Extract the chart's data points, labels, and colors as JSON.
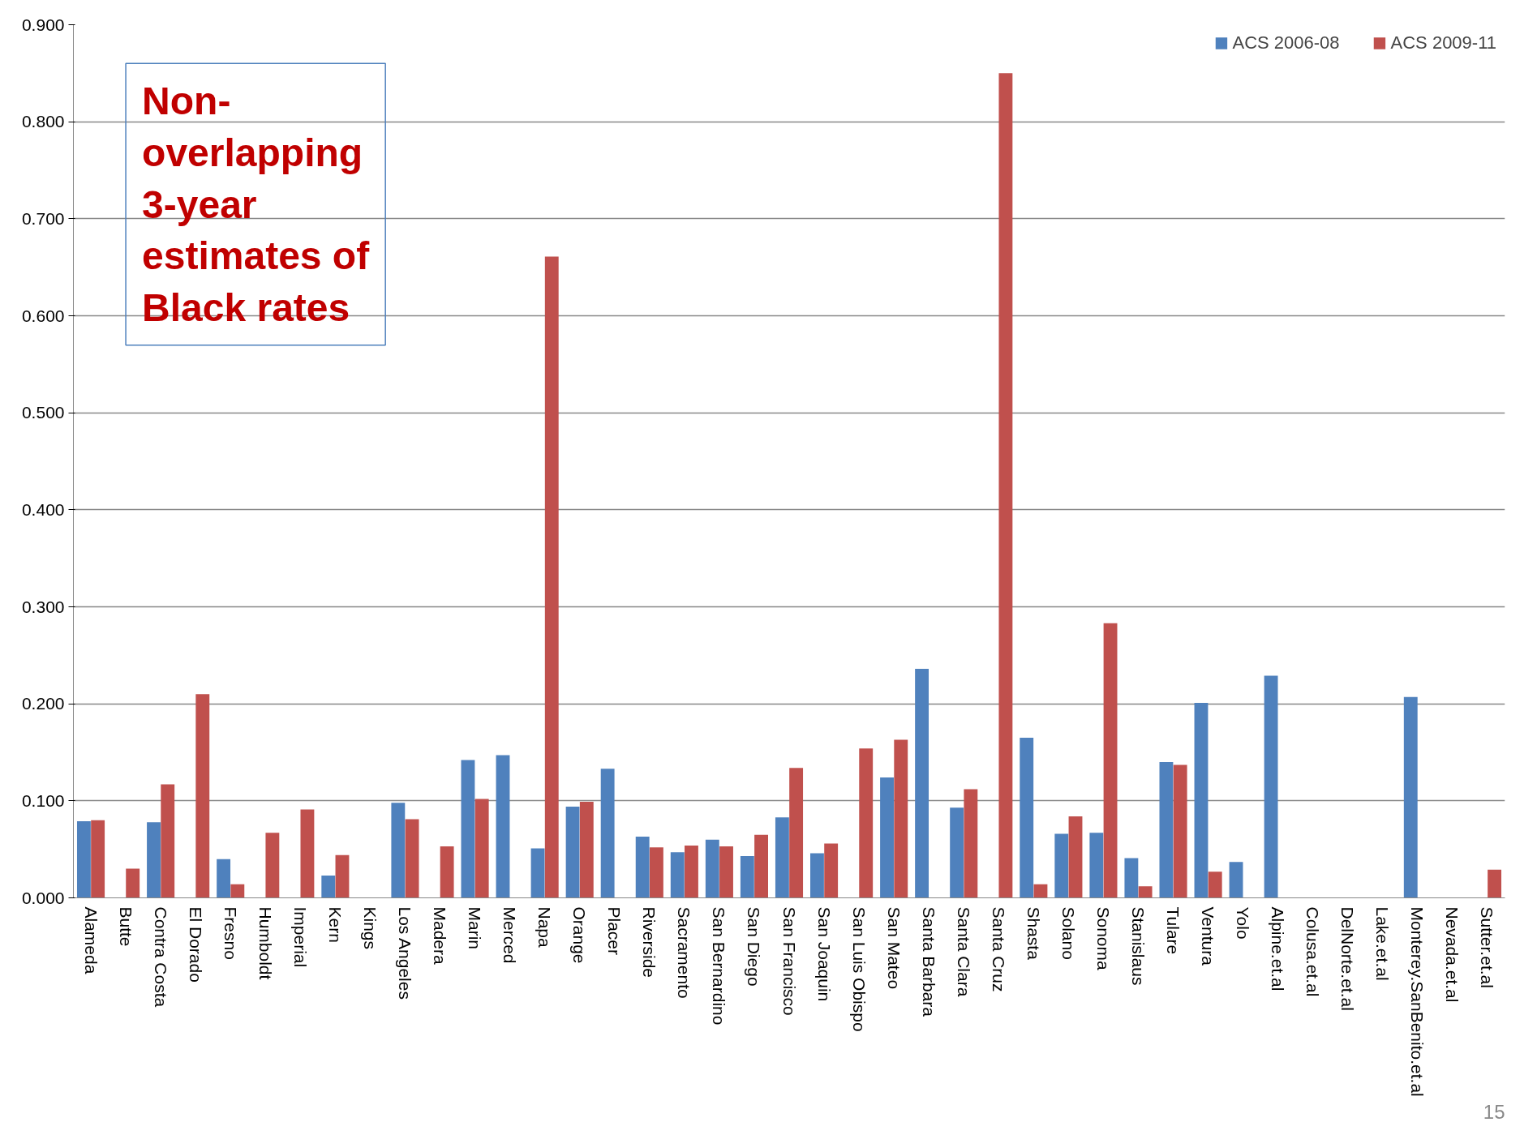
{
  "chart_data": {
    "type": "bar",
    "categories": [
      "Alameda",
      "Butte",
      "Contra Costa",
      "El Dorado",
      "Fresno",
      "Humboldt",
      "Imperial",
      "Kern",
      "Kings",
      "Los Angeles",
      "Madera",
      "Marin",
      "Merced",
      "Napa",
      "Orange",
      "Placer",
      "Riverside",
      "Sacramento",
      "San Bernardino",
      "San Diego",
      "San Francisco",
      "San Joaquin",
      "San Luis Obispo",
      "San Mateo",
      "Santa Barbara",
      "Santa Clara",
      "Santa Cruz",
      "Shasta",
      "Solano",
      "Sonoma",
      "Stanislaus",
      "Tulare",
      "Ventura",
      "Yolo",
      "Alpine.et.al",
      "Colusa.et.al",
      "DelNorte.et.al",
      "Lake.et.al",
      "Monterey.SanBenito.et.al",
      "Nevada.et.al",
      "Sutter.et.al"
    ],
    "series": [
      {
        "name": "ACS 2006-08",
        "color": "#4f81bd",
        "values": [
          0.079,
          null,
          0.078,
          null,
          0.04,
          null,
          null,
          0.023,
          null,
          0.098,
          null,
          0.142,
          0.147,
          0.051,
          0.094,
          0.133,
          0.063,
          0.047,
          0.06,
          0.043,
          0.083,
          0.046,
          null,
          0.124,
          0.236,
          0.093,
          null,
          0.165,
          0.066,
          0.067,
          0.041,
          0.14,
          0.201,
          0.037,
          0.229,
          null,
          null,
          null,
          0.207,
          null,
          null
        ]
      },
      {
        "name": "ACS 2009-11",
        "color": "#c0504d",
        "values": [
          0.08,
          0.03,
          0.117,
          0.21,
          0.014,
          0.067,
          0.091,
          0.044,
          null,
          0.081,
          0.053,
          0.102,
          null,
          0.661,
          0.099,
          null,
          0.052,
          0.054,
          0.053,
          0.065,
          0.134,
          0.056,
          0.154,
          0.163,
          null,
          0.112,
          0.85,
          0.014,
          0.084,
          0.283,
          0.012,
          0.137,
          0.027,
          null,
          null,
          null,
          null,
          null,
          null,
          null,
          0.029
        ]
      }
    ],
    "ylim": [
      0,
      0.9
    ],
    "yticks": [
      {
        "value": 0,
        "label": "0.000"
      },
      {
        "value": 0.1,
        "label": "0.100"
      },
      {
        "value": 0.2,
        "label": "0.200"
      },
      {
        "value": 0.3,
        "label": "0.300"
      },
      {
        "value": 0.4,
        "label": "0.400"
      },
      {
        "value": 0.5,
        "label": "0.500"
      },
      {
        "value": 0.6,
        "label": "0.600"
      },
      {
        "value": 0.7,
        "label": "0.700"
      },
      {
        "value": 0.8,
        "label": "0.800"
      },
      {
        "value": 0.9,
        "label": "0.900"
      }
    ],
    "grid": "y",
    "legend": "top right",
    "annotations": [
      "Non-overlapping 3-year estimates of Black rates",
      "15"
    ]
  }
}
